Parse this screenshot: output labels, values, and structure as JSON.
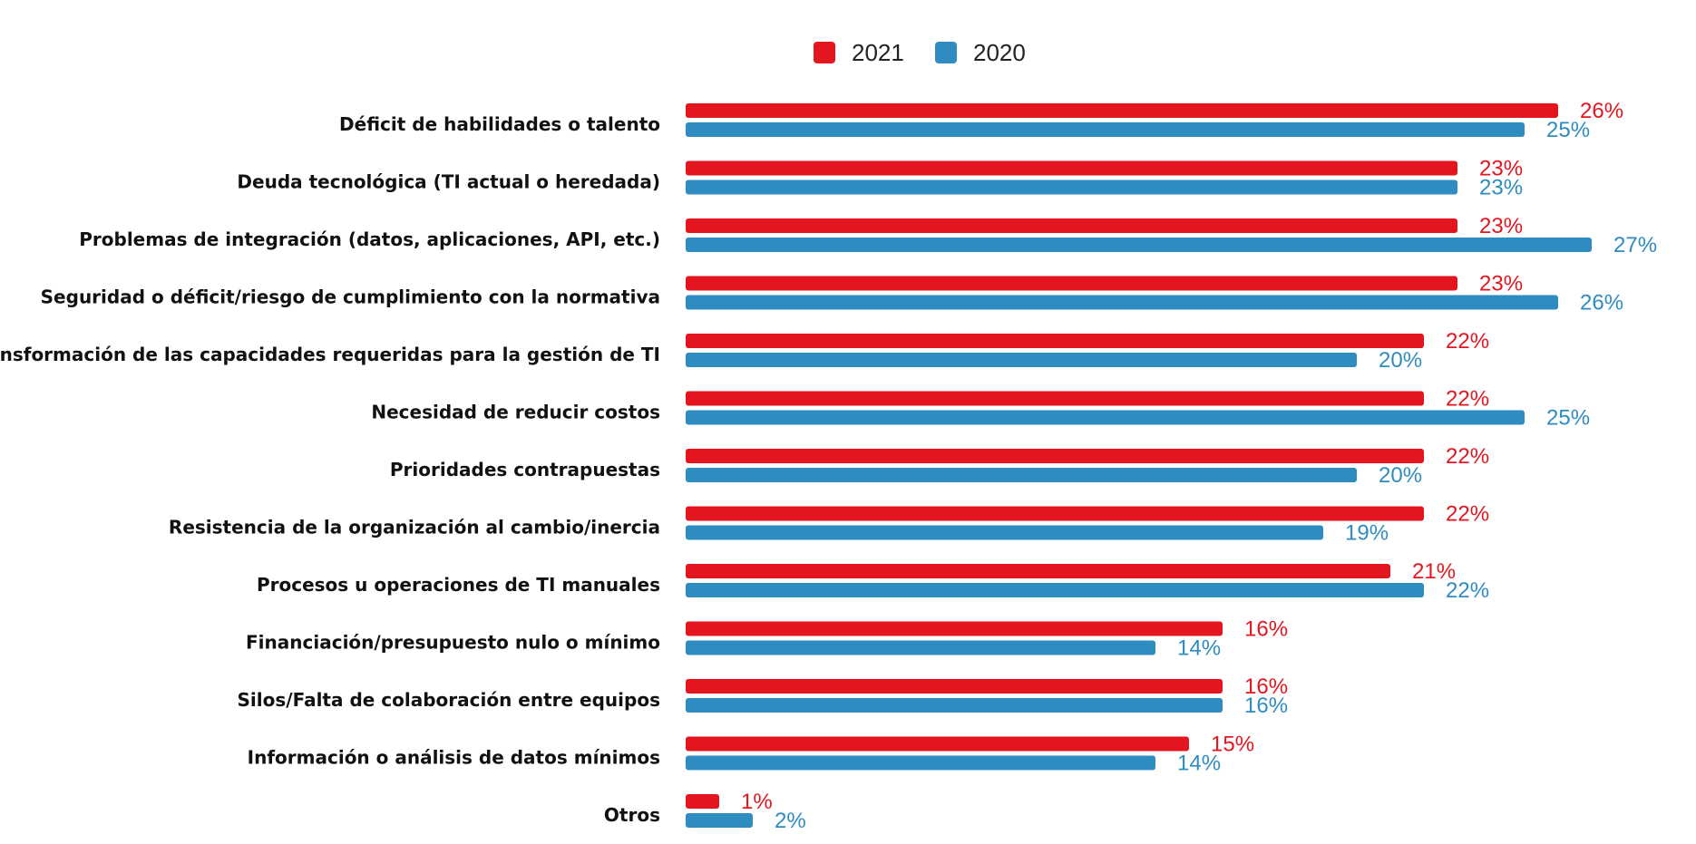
{
  "chart_data": {
    "type": "bar",
    "orientation": "horizontal",
    "categories": [
      "Déficit de habilidades o talento",
      "Deuda tecnológica (TI actual o heredada)",
      "Problemas de integración (datos, aplicaciones, API, etc.)",
      "Seguridad o déficit/riesgo de cumplimiento con la normativa",
      "Transformación de las capacidades requeridas para la gestión de TI",
      "Necesidad de reducir costos",
      "Prioridades contrapuestas",
      "Resistencia de la organización al cambio/inercia",
      "Procesos u operaciones de TI manuales",
      "Financiación/presupuesto nulo o mínimo",
      "Silos/Falta de colaboración entre equipos",
      "Información o análisis de datos mínimos",
      "Otros"
    ],
    "series": [
      {
        "name": "2021",
        "color": "#e3161f",
        "values": [
          26,
          23,
          23,
          23,
          22,
          22,
          22,
          22,
          21,
          16,
          16,
          15,
          1
        ],
        "labels": [
          "26%",
          "23%",
          "23%",
          "23%",
          "22%",
          "22%",
          "22%",
          "22%",
          "21%",
          "16%",
          "16%",
          "15%",
          "1%"
        ]
      },
      {
        "name": "2020",
        "color": "#2f8cc0",
        "values": [
          25,
          23,
          27,
          26,
          20,
          25,
          20,
          19,
          22,
          14,
          16,
          14,
          2
        ],
        "labels": [
          "25%",
          "23%",
          "27%",
          "26%",
          "20%",
          "25%",
          "20%",
          "19%",
          "22%",
          "14%",
          "16%",
          "14%",
          "2%"
        ]
      }
    ],
    "legend_position": "top",
    "grid": false,
    "xlim": [
      0,
      27
    ]
  }
}
